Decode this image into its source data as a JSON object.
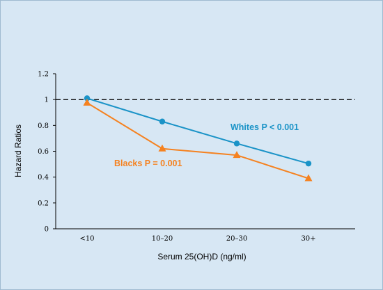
{
  "chart_data": {
    "type": "line",
    "title": "",
    "xlabel": "Serum 25(OH)D (ng/ml)",
    "ylabel": "Hazard Ratios",
    "categories": [
      "<10",
      "10–20",
      "20–30",
      "30+"
    ],
    "ylim": [
      0,
      1.2
    ],
    "yticks": [
      "0",
      "0.2",
      "0.4",
      "0.6",
      "0.8",
      "1",
      "1.2"
    ],
    "reference_line": 1,
    "grid": false,
    "legend": "none",
    "series": [
      {
        "name": "Whites",
        "label": "Whites P < 0.001",
        "values": [
          1.01,
          0.83,
          0.66,
          0.505
        ],
        "color": "#1a93c7",
        "marker": "circle"
      },
      {
        "name": "Blacks",
        "label": "Blacks P = 0.001",
        "values": [
          0.975,
          0.62,
          0.57,
          0.39
        ],
        "color": "#f58220",
        "marker": "triangle"
      }
    ]
  }
}
